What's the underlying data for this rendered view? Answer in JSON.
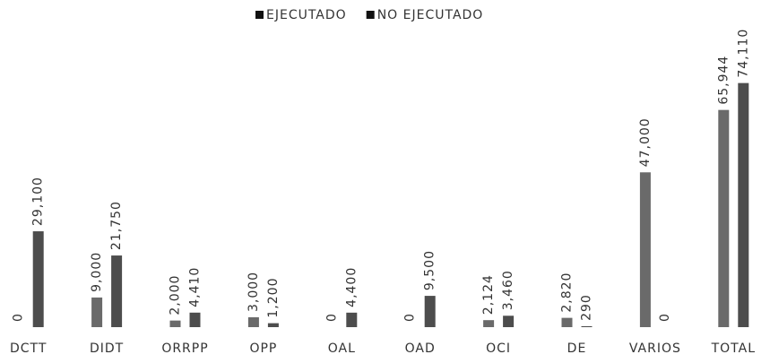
{
  "chart_data": {
    "type": "bar",
    "categories": [
      "DCTT",
      "DIDT",
      "ORRPP",
      "OPP",
      "OAL",
      "OAD",
      "OCI",
      "DE",
      "VARIOS",
      "TOTAL"
    ],
    "series": [
      {
        "name": "EJECUTADO",
        "color": "#6a6a6a",
        "values": [
          0,
          9000,
          2000,
          3000,
          0,
          0,
          2124,
          2820,
          47000,
          65944
        ],
        "value_labels": [
          "0",
          "9,000",
          "2,000",
          "3,000",
          "0",
          "0",
          "2,124",
          "2,820",
          "47,000",
          "65,944"
        ]
      },
      {
        "name": "NO EJECUTADO",
        "color": "#4d4d4d",
        "values": [
          29100,
          21750,
          4410,
          1200,
          4400,
          9500,
          3460,
          290,
          0,
          74110
        ],
        "value_labels": [
          "29,100",
          "21,750",
          "4,410",
          "1,200",
          "4,400",
          "9,500",
          "3,460",
          "290",
          "0",
          "74,110"
        ]
      }
    ],
    "ylim": [
      0,
      80000
    ],
    "legend": "top"
  }
}
